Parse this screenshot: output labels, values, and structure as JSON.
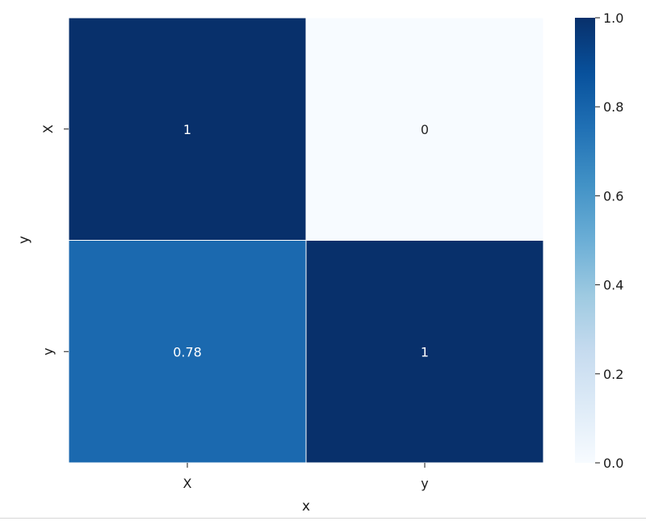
{
  "chart_data": {
    "type": "heatmap",
    "x_categories": [
      "X",
      "y"
    ],
    "y_categories": [
      "X",
      "y"
    ],
    "values": [
      [
        1,
        0
      ],
      [
        0.78,
        1
      ]
    ],
    "annotations": [
      [
        "1",
        "0"
      ],
      [
        "0.78",
        "1"
      ]
    ],
    "xlabel": "x",
    "ylabel": "y",
    "colormap": "Blues",
    "colormap_stops": [
      "#f7fbff",
      "#deebf7",
      "#c6dbef",
      "#9ecae1",
      "#6baed6",
      "#4292c6",
      "#2171b5",
      "#08519c",
      "#08306b"
    ],
    "vmin": 0.0,
    "vmax": 1.0,
    "colorbar": {
      "ticks": [
        0.0,
        0.2,
        0.4,
        0.6,
        0.8,
        1.0
      ],
      "tick_labels": [
        "0.0",
        "0.2",
        "0.4",
        "0.6",
        "0.8",
        "1.0"
      ]
    },
    "cell_edge_color": "#ffffff",
    "grid": false
  }
}
